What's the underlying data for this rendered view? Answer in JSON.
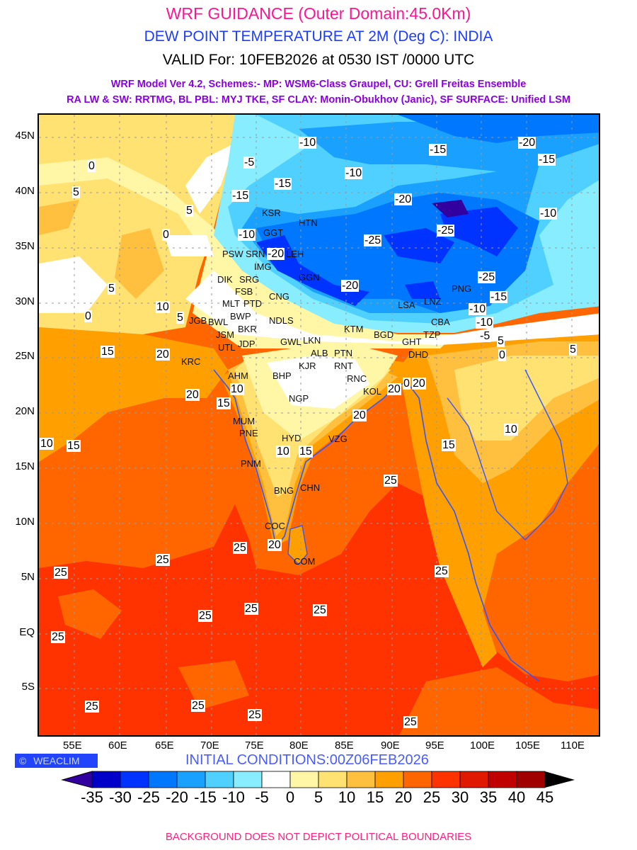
{
  "header": {
    "title": "WRF GUIDANCE (Outer Domain:45.0Km)",
    "subtitle": "DEW POINT TEMPERATURE AT 2M (Deg C): INDIA",
    "valid": "VALID For: 10FEB2026 at 0530 IST /0000 UTC",
    "model_line1": "WRF Model Ver 4.2, Schemes:- MP: WSM6-Class Graupel, CU: Grell Freitas Ensemble",
    "model_line2": "RA LW & SW: RRTMG, BL PBL: MYJ TKE, SF CLAY: Monin-Obukhov (Janic), SF SURFACE: Unified LSM"
  },
  "axes": {
    "lon_labels": [
      "55E",
      "60E",
      "65E",
      "70E",
      "75E",
      "80E",
      "85E",
      "90E",
      "95E",
      "100E",
      "105E",
      "110E"
    ],
    "lat_labels": [
      "45N",
      "40N",
      "35N",
      "30N",
      "25N",
      "20N",
      "15N",
      "10N",
      "5N",
      "EQ",
      "5S"
    ]
  },
  "cities": [
    "KSR",
    "HTN",
    "GGT",
    "PSW",
    "SRN",
    "LEH",
    "DIK",
    "SRG",
    "FSB",
    "IMG",
    "GGN",
    "MLT",
    "BWP",
    "BWL",
    "PTD",
    "CNG",
    "BKR",
    "NDLS",
    "JSM",
    "JDP",
    "UTL",
    "GWL",
    "LKN",
    "ALB",
    "PTN",
    "RNT",
    "KJR",
    "KTM",
    "BGD",
    "LSA",
    "LNZ",
    "PNG",
    "GHT",
    "DHD",
    "TZP",
    "CBA",
    "AHM",
    "BHP",
    "RNC",
    "KOL",
    "NGP",
    "MUM",
    "PNE",
    "HYD",
    "VZG",
    "PNM",
    "BNG",
    "CHN",
    "COC",
    "COM",
    "KRC",
    "JGB"
  ],
  "contour_labels": [
    "-15",
    "-10",
    "-5",
    "-15",
    "-20",
    "-10",
    "-15",
    "-20",
    "-15",
    "-10",
    "-25",
    "-10",
    "-25",
    "-20",
    "-25",
    "-20",
    "-15",
    "-10",
    "-5",
    "0",
    "5",
    "5",
    "10",
    "15",
    "20",
    "0",
    "5",
    "10",
    "15",
    "20",
    "10",
    "15",
    "20",
    "25",
    "25",
    "20",
    "20",
    "25",
    "25",
    "25",
    "25",
    "25",
    "25",
    "25",
    "25",
    "20",
    "25",
    "25",
    "25",
    "5",
    "0",
    "5",
    "10",
    "0",
    "10",
    "15",
    "15",
    "-10",
    "5",
    "0"
  ],
  "footer": {
    "brand": "WEACLIM",
    "initial_conditions": "INITIAL CONDITIONS:00Z06FEB2026",
    "note": "BACKGROUND DOES NOT DEPICT POLITICAL BOUNDARIES"
  },
  "colorbar": {
    "labels": [
      "-35",
      "-30",
      "-25",
      "-20",
      "-15",
      "-10",
      "-5",
      "0",
      "5",
      "10",
      "15",
      "20",
      "25",
      "30",
      "35",
      "40",
      "45"
    ],
    "colors": [
      "#0000c8",
      "#0033ff",
      "#0077ff",
      "#1aa0ff",
      "#50d0ff",
      "#88eeff",
      "#ffffff",
      "#fff6a6",
      "#ffe272",
      "#ffc040",
      "#ffa000",
      "#ff6600",
      "#ff3300",
      "#e01a00",
      "#c00000",
      "#a00000"
    ],
    "under_color": "#3300a0",
    "over_color": "#000000"
  }
}
